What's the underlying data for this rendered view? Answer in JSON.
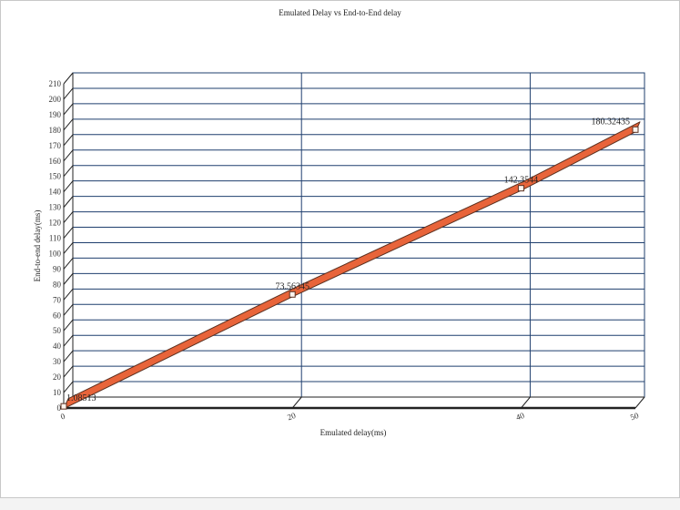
{
  "chart_data": {
    "type": "line",
    "title": "Emulated Delay vs End-to-End delay",
    "xlabel": "Emulated delay(ms)",
    "ylabel": "End-to-end delay(ms)",
    "xlim": [
      0,
      50
    ],
    "ylim": [
      0,
      210
    ],
    "x_ticks": [
      0,
      20,
      40,
      50
    ],
    "y_ticks": [
      0,
      10,
      20,
      30,
      40,
      50,
      60,
      70,
      80,
      90,
      100,
      110,
      120,
      130,
      140,
      150,
      160,
      170,
      180,
      190,
      200,
      210
    ],
    "grid": true,
    "series": [
      {
        "x": [
          0,
          20,
          40,
          50
        ],
        "y": [
          1.08513,
          73.56345,
          142.3544,
          180.32435
        ],
        "labels": [
          "1.08513",
          "73.56345",
          "142.3544",
          "180.32435"
        ]
      }
    ]
  },
  "colors": {
    "line_fill": "#e8643a",
    "line_edge": "#5a3020",
    "grid": "#1f3f6e",
    "axis": "#222222"
  }
}
